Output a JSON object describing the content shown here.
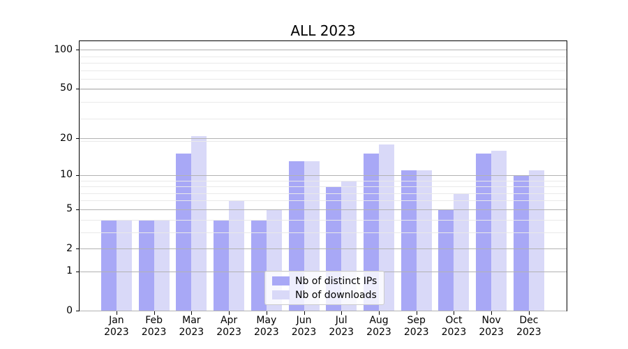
{
  "chart_data": {
    "type": "bar",
    "title": "ALL 2023",
    "categories": [
      "Jan",
      "Feb",
      "Mar",
      "Apr",
      "May",
      "Jun",
      "Jul",
      "Aug",
      "Sep",
      "Oct",
      "Nov",
      "Dec"
    ],
    "year_label": "2023",
    "series": [
      {
        "name": "Nb of distinct IPs",
        "color": "#a8a8f6",
        "values": [
          4,
          4,
          15,
          4,
          4,
          13,
          8,
          15,
          11,
          5,
          15,
          10
        ]
      },
      {
        "name": "Nb of downloads",
        "color": "#d9d9f8",
        "values": [
          4,
          4,
          21,
          6,
          5,
          13,
          9,
          18,
          11,
          7,
          16,
          11
        ]
      }
    ],
    "xlabel": "",
    "ylabel": "",
    "yscale": "log1p",
    "ylim": [
      0,
      116
    ],
    "yticks": [
      0,
      1,
      2,
      5,
      10,
      20,
      50,
      100
    ],
    "yticks_minor": [
      3,
      4,
      6,
      7,
      8,
      9,
      19,
      29,
      39,
      49,
      59,
      69,
      79,
      89
    ],
    "grid": true,
    "grid_over_bars": true,
    "legend_position": "lower center",
    "colors": {
      "major_grid": "#b2b2b2",
      "minor_grid": "#e9e9e9",
      "axis": "#000000",
      "background": "#ffffff",
      "legend_border": "#cccccc"
    }
  }
}
